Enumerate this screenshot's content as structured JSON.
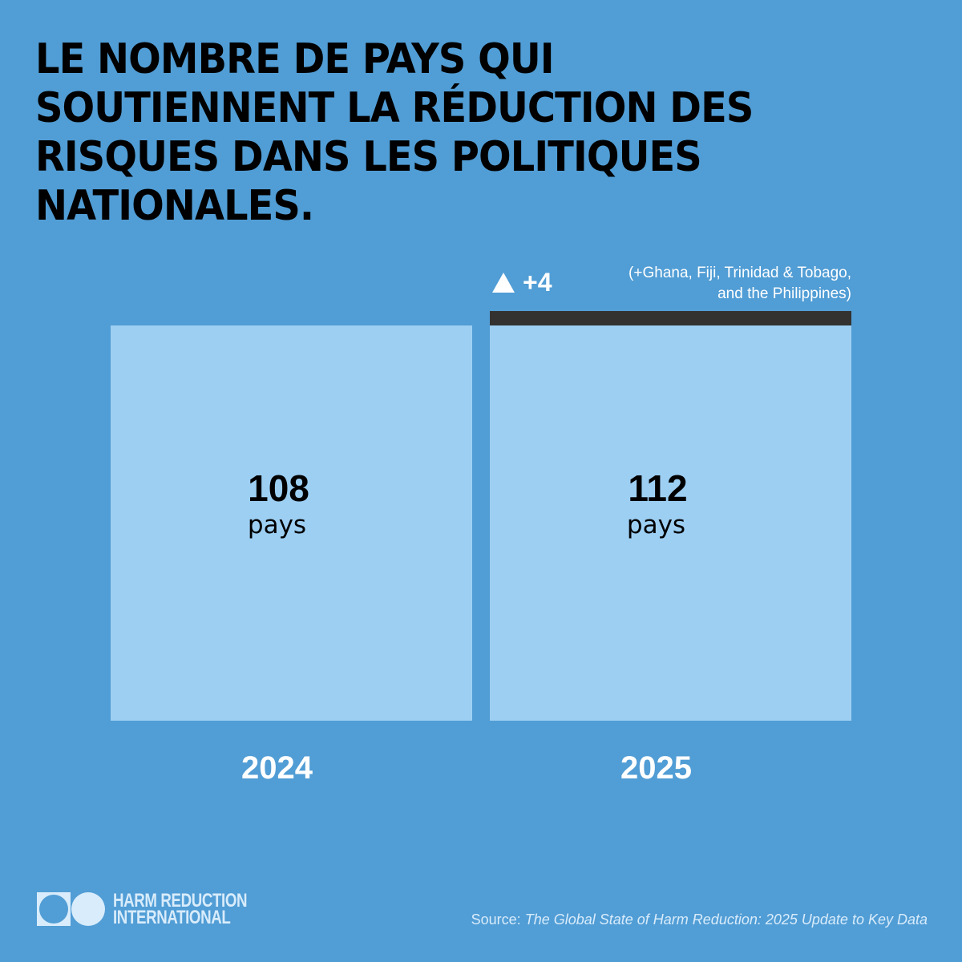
{
  "title_lines": [
    "LE NOMBRE DE PAYS QUI",
    "SOUTIENNENT LA RÉDUCTION DES",
    "RISQUES DANS LES POLITIQUES",
    "NATIONALES."
  ],
  "colors": {
    "background": "#519dd5",
    "bar": "#9dcff3",
    "increase_band": "#333231",
    "logo": "#d8ecfb"
  },
  "annotation": {
    "icon": "triangle-up-icon",
    "delta": "+4",
    "note_line1": "(+Ghana, Fiji, Trinidad & Tobago,",
    "note_line2": "and the Philippines)"
  },
  "chart_data": {
    "type": "bar",
    "title": "LE NOMBRE DE PAYS QUI SOUTIENNENT LA RÉDUCTION DES RISQUES DANS LES POLITIQUES NATIONALES.",
    "categories": [
      "2024",
      "2025"
    ],
    "values": [
      108,
      112
    ],
    "unit": "pays",
    "increase": 4,
    "value_labels": [
      "108",
      "112"
    ],
    "xlabel": "",
    "ylabel": "",
    "ylim": [
      0,
      112
    ],
    "grid": false
  },
  "footer": {
    "logo_line1": "HARM REDUCTION",
    "logo_line2": "INTERNATIONAL",
    "source_label": "Source:",
    "source_title": "The Global State of Harm Reduction: 2025 Update to Key Data"
  }
}
